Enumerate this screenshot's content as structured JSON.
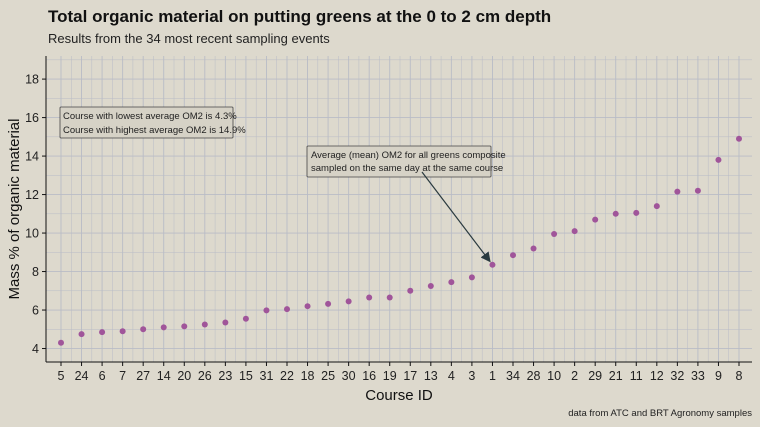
{
  "chart_data": {
    "type": "scatter",
    "title": "Total organic material on putting greens at the 0 to 2 cm depth",
    "subtitle": "Results from the 34 most recent sampling events",
    "xlabel": "Course ID",
    "ylabel": "Mass % of organic material",
    "caption": "data from ATC and BRT Agronomy samples",
    "ylim": [
      3.3,
      19.2
    ],
    "yticks": [
      4,
      6,
      8,
      10,
      12,
      14,
      16,
      18
    ],
    "grid": true,
    "point_color": "#a0559a",
    "categories": [
      "5",
      "24",
      "6",
      "7",
      "27",
      "14",
      "20",
      "26",
      "23",
      "15",
      "31",
      "22",
      "18",
      "25",
      "30",
      "16",
      "19",
      "17",
      "13",
      "4",
      "3",
      "1",
      "34",
      "28",
      "10",
      "2",
      "29",
      "21",
      "11",
      "12",
      "32",
      "33",
      "9",
      "8"
    ],
    "values": [
      4.3,
      4.75,
      4.85,
      4.9,
      5.0,
      5.1,
      5.15,
      5.25,
      5.35,
      5.55,
      5.98,
      6.05,
      6.2,
      6.32,
      6.45,
      6.65,
      6.65,
      7.0,
      7.25,
      7.45,
      7.7,
      8.35,
      8.85,
      9.2,
      9.95,
      10.1,
      10.7,
      11.0,
      11.05,
      11.4,
      12.15,
      12.2,
      13.8,
      14.9
    ],
    "annotations": {
      "range_box": [
        "Course with lowest average OM2 is 4.3%",
        "Course with highest average OM2 is 14.9%"
      ],
      "mean_box": [
        "Average (mean) OM2 for all greens composite",
        "sampled on the same day at the same course"
      ]
    }
  },
  "colors": {
    "background": "#ddd9cd",
    "grid": "#b9bcc6",
    "annotation_fill": "#d6d2c6",
    "arrow": "#2a3a3f"
  }
}
